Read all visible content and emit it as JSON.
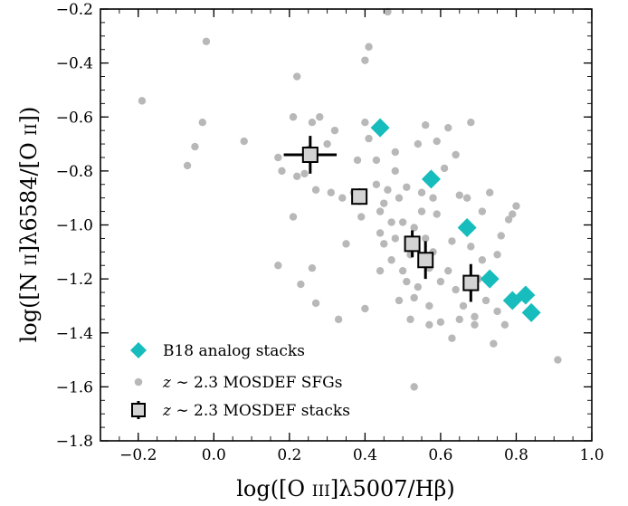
{
  "chart_data": {
    "type": "scatter",
    "xlabel": "log([O III]λ5007/Hβ)",
    "ylabel": "log([N II]λ6584/[O II])",
    "xlim": [
      -0.3,
      1.0
    ],
    "ylim": [
      -1.8,
      -0.2
    ],
    "x_ticks": [
      -0.2,
      0.0,
      0.2,
      0.4,
      0.6,
      0.8,
      1.0
    ],
    "x_tick_labels": [
      "−0.2",
      "0.0",
      "0.2",
      "0.4",
      "0.6",
      "0.8",
      "1.0"
    ],
    "y_ticks": [
      -1.8,
      -1.6,
      -1.4,
      -1.2,
      -1.0,
      -0.8,
      -0.6,
      -0.4,
      -0.2
    ],
    "y_tick_labels": [
      "−1.8",
      "−1.6",
      "−1.4",
      "−1.2",
      "−1.0",
      "−0.8",
      "−0.6",
      "−0.4",
      "−0.2"
    ],
    "grid": false,
    "legend_position": "bottom-left",
    "colors": {
      "analog": "#17bcbc",
      "sfg": "#b8b8b8",
      "stack_fill": "#d3d3d3",
      "stack_edge": "#000000"
    },
    "series": [
      {
        "name": "B18 analog stacks",
        "marker": "diamond",
        "points": [
          [
            0.44,
            -0.64
          ],
          [
            0.575,
            -0.83
          ],
          [
            0.67,
            -1.01
          ],
          [
            0.73,
            -1.2
          ],
          [
            0.79,
            -1.28
          ],
          [
            0.825,
            -1.26
          ],
          [
            0.84,
            -1.325
          ]
        ]
      },
      {
        "name": "z ∼ 2.3 MOSDEF SFGs",
        "marker": "circle",
        "points": [
          [
            -0.19,
            -0.54
          ],
          [
            -0.02,
            -0.32
          ],
          [
            -0.03,
            -0.62
          ],
          [
            -0.05,
            -0.71
          ],
          [
            -0.07,
            -0.78
          ],
          [
            0.08,
            -0.69
          ],
          [
            0.17,
            -0.75
          ],
          [
            0.18,
            -0.8
          ],
          [
            0.21,
            -0.6
          ],
          [
            0.22,
            -0.45
          ],
          [
            0.21,
            -0.97
          ],
          [
            0.22,
            -0.82
          ],
          [
            0.25,
            -0.72
          ],
          [
            0.24,
            -0.81
          ],
          [
            0.26,
            -0.62
          ],
          [
            0.28,
            -0.6
          ],
          [
            0.27,
            -0.87
          ],
          [
            0.3,
            -0.7
          ],
          [
            0.31,
            -0.88
          ],
          [
            0.32,
            -0.65
          ],
          [
            0.34,
            -0.9
          ],
          [
            0.35,
            -1.07
          ],
          [
            0.37,
            -0.88
          ],
          [
            0.38,
            -0.76
          ],
          [
            0.39,
            -0.97
          ],
          [
            0.4,
            -0.62
          ],
          [
            0.4,
            -0.39
          ],
          [
            0.41,
            -0.34
          ],
          [
            0.41,
            -0.68
          ],
          [
            0.43,
            -0.76
          ],
          [
            0.43,
            -0.85
          ],
          [
            0.44,
            -0.95
          ],
          [
            0.44,
            -1.03
          ],
          [
            0.45,
            -0.92
          ],
          [
            0.45,
            -1.07
          ],
          [
            0.46,
            -0.87
          ],
          [
            0.47,
            -0.99
          ],
          [
            0.47,
            -1.13
          ],
          [
            0.48,
            -1.05
          ],
          [
            0.48,
            -0.8
          ],
          [
            0.49,
            -0.9
          ],
          [
            0.5,
            -0.99
          ],
          [
            0.5,
            -1.17
          ],
          [
            0.51,
            -0.86
          ],
          [
            0.51,
            -1.21
          ],
          [
            0.52,
            -1.11
          ],
          [
            0.53,
            -1.01
          ],
          [
            0.53,
            -1.27
          ],
          [
            0.54,
            -0.7
          ],
          [
            0.54,
            -1.23
          ],
          [
            0.55,
            -0.88
          ],
          [
            0.55,
            -0.95
          ],
          [
            0.56,
            -0.63
          ],
          [
            0.56,
            -1.05
          ],
          [
            0.57,
            -1.16
          ],
          [
            0.57,
            -1.3
          ],
          [
            0.58,
            -0.9
          ],
          [
            0.58,
            -1.1
          ],
          [
            0.59,
            -0.69
          ],
          [
            0.59,
            -0.96
          ],
          [
            0.6,
            -1.21
          ],
          [
            0.6,
            -1.36
          ],
          [
            0.61,
            -0.79
          ],
          [
            0.62,
            -0.64
          ],
          [
            0.62,
            -1.17
          ],
          [
            0.63,
            -1.06
          ],
          [
            0.64,
            -0.74
          ],
          [
            0.64,
            -1.24
          ],
          [
            0.65,
            -0.89
          ],
          [
            0.65,
            -1.35
          ],
          [
            0.66,
            -1.3
          ],
          [
            0.67,
            -0.9
          ],
          [
            0.68,
            -0.62
          ],
          [
            0.68,
            -1.08
          ],
          [
            0.69,
            -1.34
          ],
          [
            0.7,
            -1.2
          ],
          [
            0.71,
            -0.95
          ],
          [
            0.72,
            -1.28
          ],
          [
            0.73,
            -0.88
          ],
          [
            0.74,
            -1.44
          ],
          [
            0.75,
            -1.11
          ],
          [
            0.76,
            -1.04
          ],
          [
            0.78,
            -0.98
          ],
          [
            0.79,
            -0.96
          ],
          [
            0.8,
            -0.93
          ],
          [
            0.75,
            -1.32
          ],
          [
            0.77,
            -1.37
          ],
          [
            0.53,
            -1.6
          ],
          [
            0.46,
            -0.21
          ],
          [
            0.91,
            -1.5
          ],
          [
            0.17,
            -1.15
          ],
          [
            0.23,
            -1.22
          ],
          [
            0.26,
            -1.16
          ],
          [
            0.27,
            -1.29
          ],
          [
            0.33,
            -1.35
          ],
          [
            0.4,
            -1.31
          ],
          [
            0.49,
            -1.28
          ],
          [
            0.52,
            -1.35
          ],
          [
            0.57,
            -1.37
          ],
          [
            0.63,
            -1.42
          ],
          [
            0.58,
            -0.83
          ],
          [
            0.71,
            -1.13
          ],
          [
            0.69,
            -1.37
          ],
          [
            0.48,
            -0.73
          ],
          [
            0.44,
            -1.17
          ]
        ]
      },
      {
        "name": "z ∼ 2.3 MOSDEF stacks",
        "marker": "square",
        "points": [
          {
            "x": 0.255,
            "y": -0.74,
            "xerr": 0.07,
            "yerr": 0.07
          },
          {
            "x": 0.385,
            "y": -0.895,
            "xerr": 0.02,
            "yerr": 0.03
          },
          {
            "x": 0.525,
            "y": -1.07,
            "xerr": 0.02,
            "yerr": 0.05
          },
          {
            "x": 0.56,
            "y": -1.13,
            "xerr": 0.015,
            "yerr": 0.07
          },
          {
            "x": 0.68,
            "y": -1.215,
            "xerr": 0.02,
            "yerr": 0.07
          }
        ]
      }
    ],
    "legend": [
      {
        "marker": "diamond",
        "label": "B18 analog stacks"
      },
      {
        "marker": "circle",
        "label": "z ∼ 2.3 MOSDEF SFGs"
      },
      {
        "marker": "square",
        "label": "z ∼ 2.3 MOSDEF stacks"
      }
    ]
  }
}
